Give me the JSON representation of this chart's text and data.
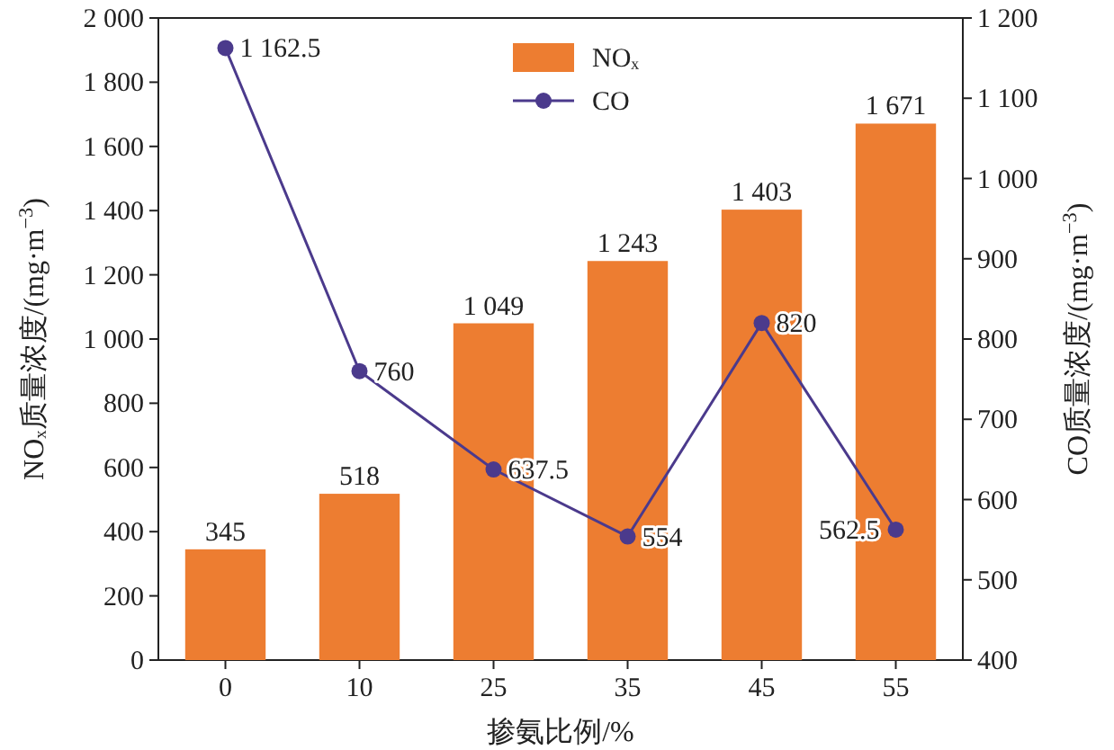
{
  "chart_data": {
    "type": "bar",
    "xlabel": "掺氨比例/%",
    "ylabel": "NOₓ质量浓度/(mg·m$^{−3}$)",
    "y2label": "CO质量浓度/(mg·m$^{−3}$)",
    "categories": [
      "0",
      "10",
      "25",
      "35",
      "45",
      "55"
    ],
    "series": [
      {
        "name": "NOₓ",
        "color": "#ed7d31",
        "values": [
          345,
          518,
          1049,
          1243,
          1403,
          1671
        ],
        "value_labels": [
          "345",
          "518",
          "1 049",
          "1 243",
          "1 403",
          "1 671"
        ]
      },
      {
        "name": "CO",
        "type": "line",
        "axis": "y2",
        "color": "#4b3a8c",
        "marker": "circle",
        "values": [
          1162.5,
          760,
          637.5,
          554,
          820,
          562.5
        ],
        "value_labels": [
          "1 162.5",
          "760",
          "637.5",
          "554",
          "820",
          "562.5"
        ]
      }
    ],
    "ylim": [
      0,
      2000
    ],
    "yticks": [
      0,
      200,
      400,
      600,
      800,
      {
        "value": 1000,
        "label": "1 000"
      },
      {
        "value": 1200,
        "label": "1 200"
      },
      {
        "value": 1400,
        "label": "1 400"
      },
      {
        "value": 1600,
        "label": "1 600"
      },
      {
        "value": 1800,
        "label": "1 800"
      },
      {
        "value": 2000,
        "label": "2 000"
      }
    ],
    "y2lim": [
      400,
      1200
    ],
    "y2ticks": [
      400,
      500,
      600,
      700,
      800,
      900,
      {
        "value": 1000,
        "label": "1 000"
      },
      {
        "value": 1100,
        "label": "1 100"
      },
      {
        "value": 1200,
        "label": "1 200"
      }
    ],
    "grid": false,
    "legend": "top"
  }
}
